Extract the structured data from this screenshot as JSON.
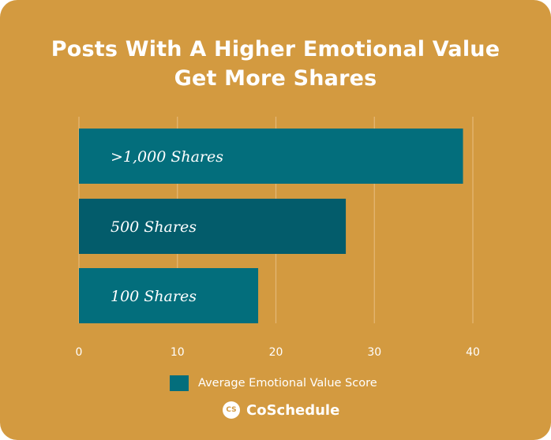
{
  "colors": {
    "background": "#D39A40",
    "bar_primary": "#036E7C",
    "bar_secondary": "#035C6B",
    "grid": "#E4B877",
    "text": "#FFFFFF"
  },
  "chart_data": {
    "type": "bar",
    "orientation": "horizontal",
    "title_line1": "Posts With A Higher Emotional Value",
    "title_line2": "Get More Shares",
    "categories": [
      ">1,000 Shares",
      "500 Shares",
      "100 Shares"
    ],
    "series": [
      {
        "name": "Average Emotional Value Score",
        "values": [
          39,
          27.1,
          18.2
        ]
      }
    ],
    "bar_colors": [
      "#036E7C",
      "#035C6B",
      "#036E7C"
    ],
    "xlim": [
      0,
      40
    ],
    "xticks": [
      "0",
      "10",
      "20",
      "30",
      "40"
    ],
    "xtick_values": [
      0,
      10,
      20,
      30,
      40
    ],
    "grid": true,
    "legend_position": "bottom"
  },
  "brand": {
    "logo_icon": "coschedule-logo-icon",
    "logo_text": "CS",
    "name": "CoSchedule"
  }
}
